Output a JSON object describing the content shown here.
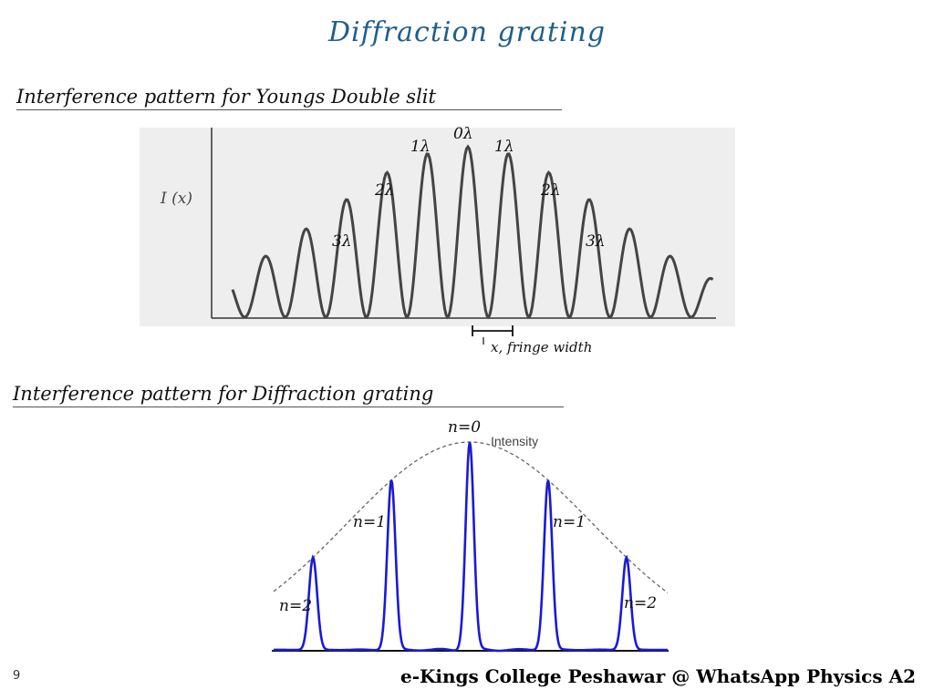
{
  "title": "Diffraction grating",
  "sections": {
    "double_slit": {
      "heading": "Interference pattern for Youngs Double slit",
      "axis_label": "I (x)",
      "fringe_labels": [
        "3λ",
        "2λ",
        "1λ",
        "0λ",
        "1λ",
        "2λ",
        "3λ"
      ],
      "fringe_width_label": "x, fringe width"
    },
    "grating": {
      "heading": "Interference pattern for Diffraction grating",
      "envelope_label": "Intensity",
      "order_labels": [
        "n=2",
        "n=1",
        "n=0",
        "n=1",
        "n=2"
      ]
    }
  },
  "footer": {
    "slide_number": "9",
    "text": "e-Kings College Peshawar @ WhatsApp Physics A2"
  },
  "colors": {
    "title": "#1f5f8b",
    "grating_curve": "#1a1ad6",
    "plot_background": "#eeeeee"
  }
}
